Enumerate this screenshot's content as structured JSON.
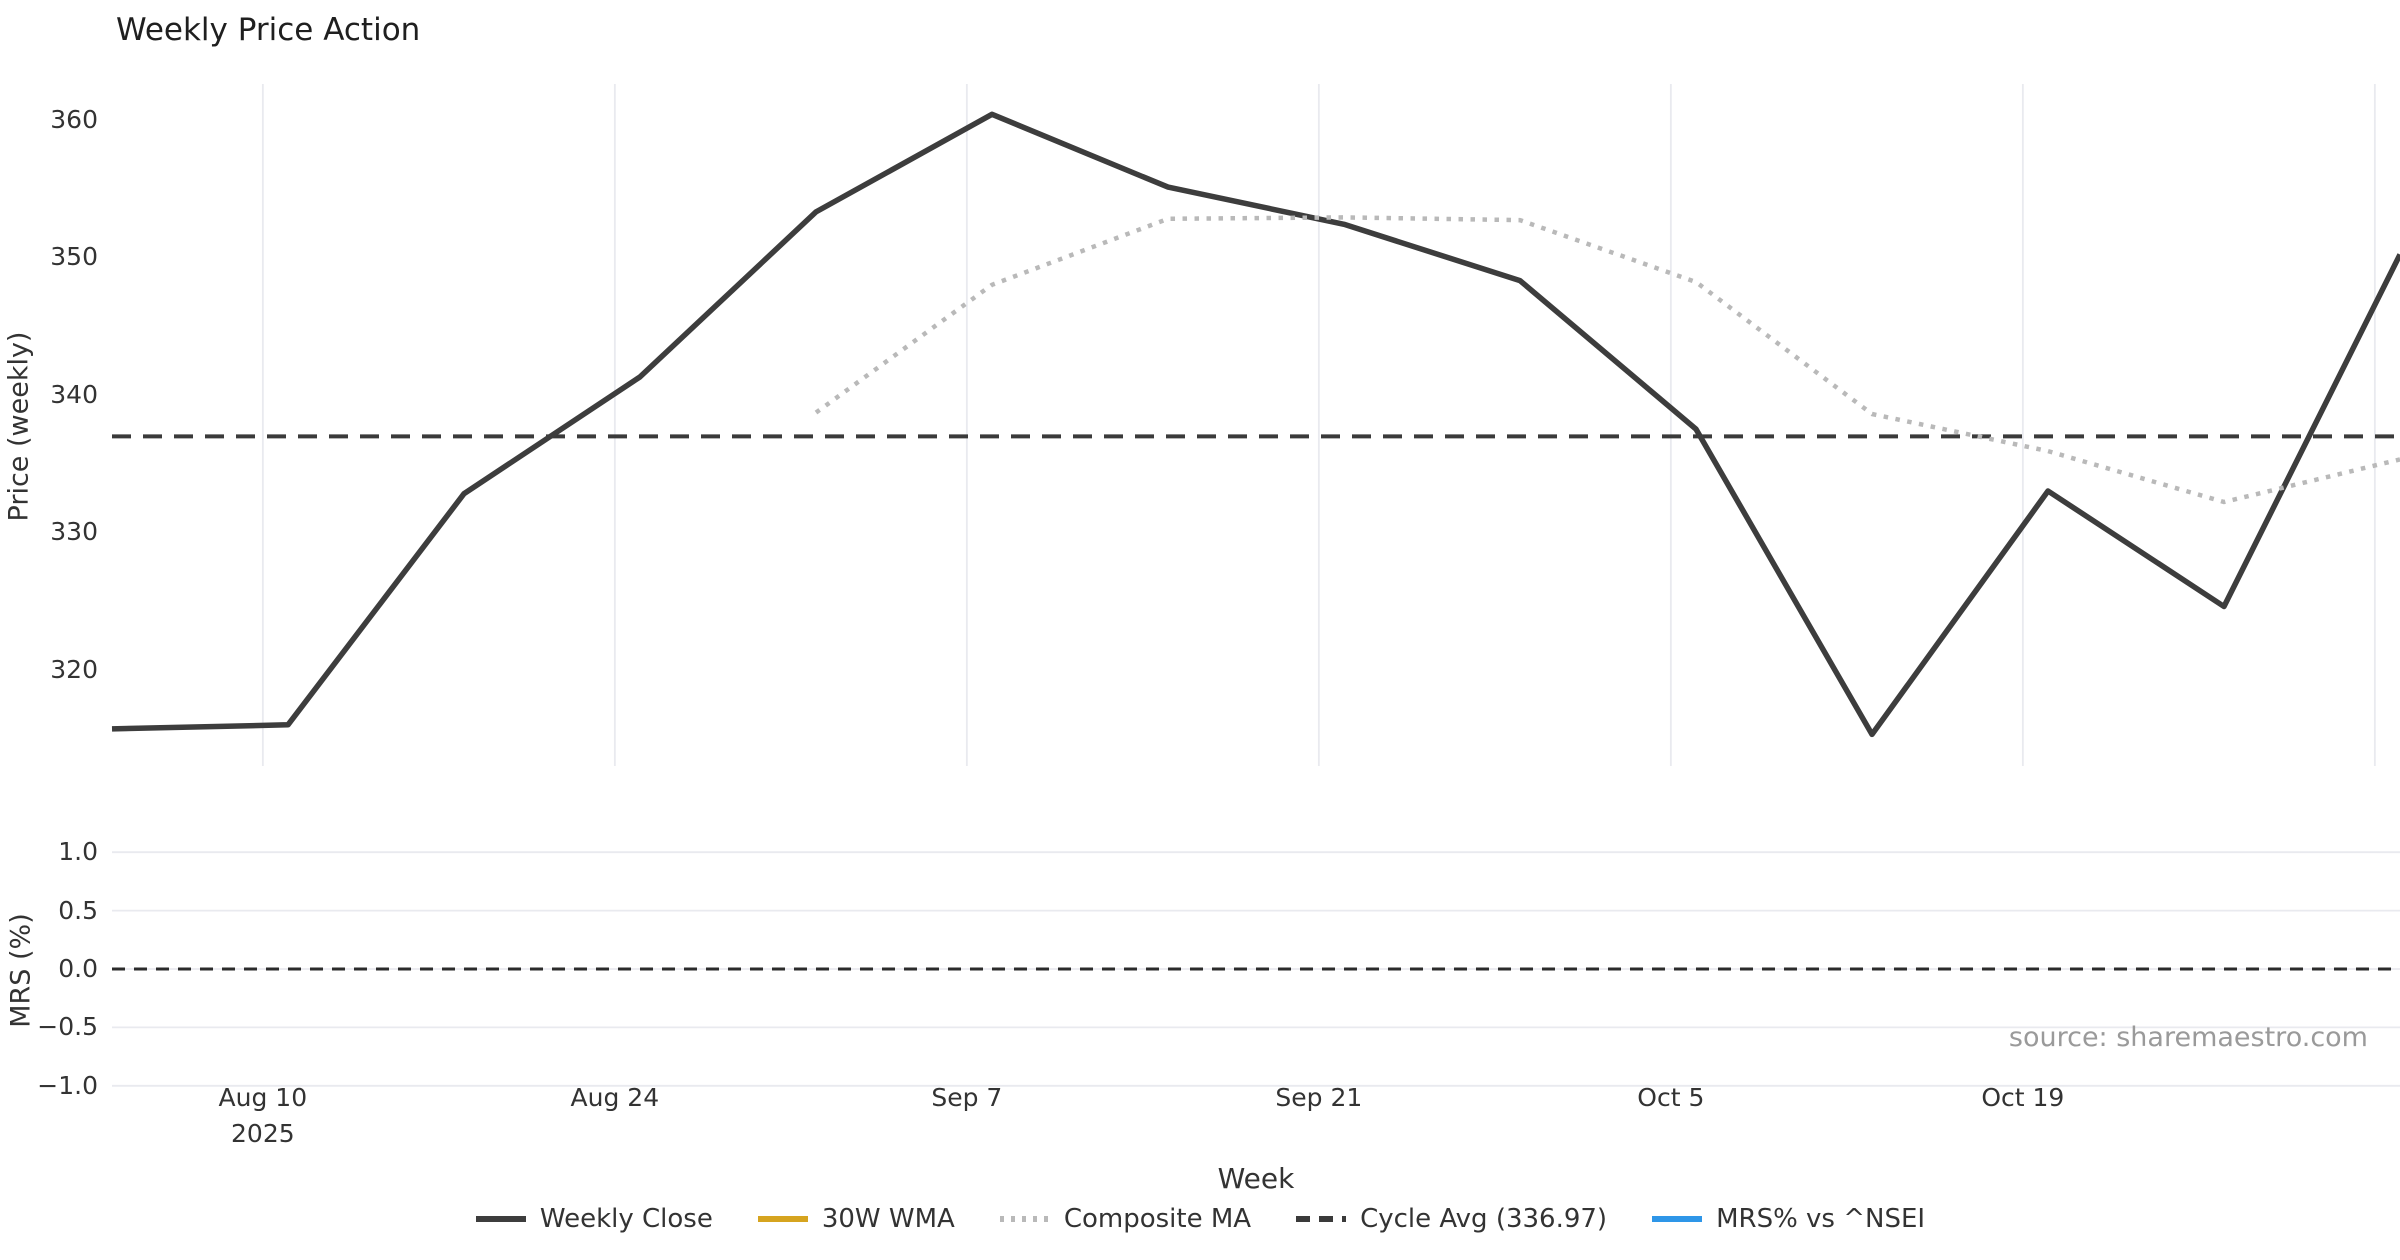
{
  "title": "Weekly Price Action",
  "source_note": "source: sharemaestro.com",
  "chart_data": {
    "type": "line",
    "title": "Weekly Price Action",
    "xlabel": "Week",
    "x_axis": {
      "start_date": "2025-08-04",
      "interval_days": 7,
      "num_points": 14,
      "range_days": [
        0,
        91
      ],
      "ticks": [
        {
          "offset_days": 6,
          "label": "Aug 10",
          "sublabel": "2025"
        },
        {
          "offset_days": 20,
          "label": "Aug 24",
          "sublabel": ""
        },
        {
          "offset_days": 34,
          "label": "Sep 7",
          "sublabel": ""
        },
        {
          "offset_days": 48,
          "label": "Sep 21",
          "sublabel": ""
        },
        {
          "offset_days": 62,
          "label": "Oct 5",
          "sublabel": ""
        },
        {
          "offset_days": 76,
          "label": "Oct 19",
          "sublabel": ""
        },
        {
          "offset_days": 90,
          "label": "",
          "sublabel": ""
        }
      ]
    },
    "panels": [
      {
        "id": "price",
        "ylabel": "Price (weekly)",
        "ylim": [
          313.0,
          362.6
        ],
        "yticks": [
          320,
          330,
          340,
          350,
          360
        ],
        "grid": "vertical",
        "grid_color": "#e9eaef",
        "series": [
          {
            "name": "Weekly Close",
            "color": "#3d3d3d",
            "style": "solid",
            "width": 5.5,
            "start_offset_days": 0,
            "values": [
              315.7,
              316.0,
              332.8,
              341.3,
              353.3,
              360.4,
              355.1,
              352.4,
              348.3,
              337.5,
              315.3,
              333.0,
              324.6,
              350.2
            ]
          },
          {
            "name": "Composite MA",
            "color": "#b9b9b9",
            "style": "dotted",
            "width": 4.5,
            "start_offset_days": 28,
            "values": [
              338.7,
              348.0,
              352.8,
              352.9,
              352.7,
              348.2,
              338.6,
              335.9,
              332.2,
              335.3
            ]
          }
        ],
        "hlines": [
          {
            "name": "Cycle Avg",
            "value": 336.97,
            "color": "#3a3a3a",
            "style": "dashed",
            "width": 4
          }
        ]
      },
      {
        "id": "mrs",
        "ylabel": "MRS (%)",
        "ylim": [
          -1.07,
          1.07
        ],
        "yticks": [
          1.0,
          0.5,
          0.0,
          -0.5,
          -1.0
        ],
        "grid": "horizontal",
        "grid_color": "#e9eaef",
        "series": [],
        "hlines": [
          {
            "name": "zero-line",
            "value": 0.0,
            "color": "#2b2b2b",
            "style": "dashed",
            "width": 3
          }
        ]
      }
    ]
  },
  "legend": [
    {
      "label": "Weekly Close",
      "color": "#3d3d3d",
      "style": "solid"
    },
    {
      "label": "30W WMA",
      "color": "#d6a41f",
      "style": "solid"
    },
    {
      "label": "Composite MA",
      "color": "#b9b9b9",
      "style": "dotted"
    },
    {
      "label": "Cycle Avg (336.97)",
      "color": "#3a3a3a",
      "style": "dashed"
    },
    {
      "label": "MRS% vs ^NSEI",
      "color": "#2e96e8",
      "style": "solid"
    }
  ]
}
